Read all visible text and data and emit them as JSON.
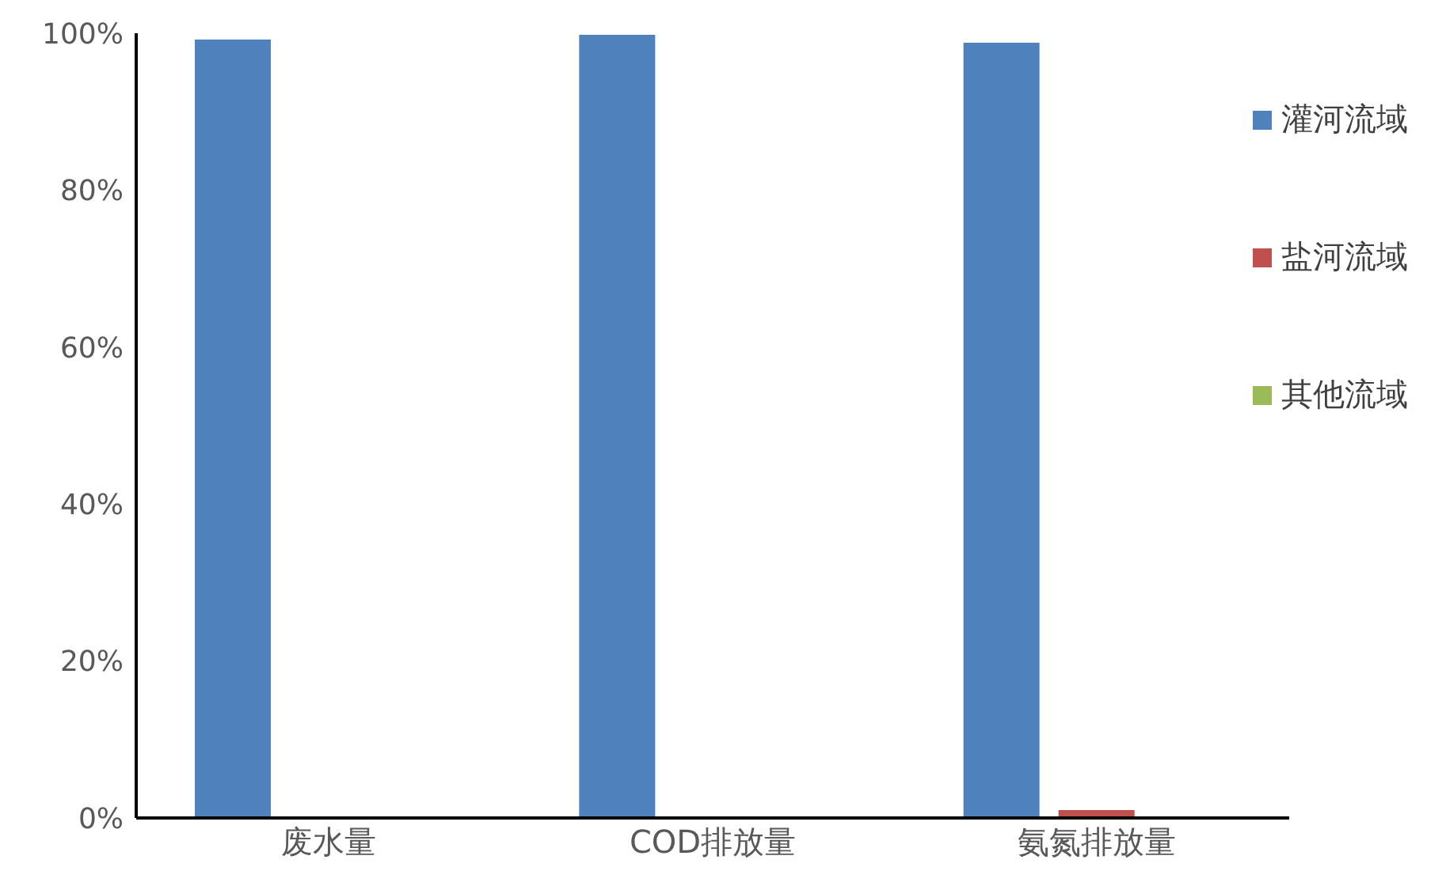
{
  "chart_data": {
    "type": "bar",
    "categories": [
      "废水量",
      "COD排放量",
      "氨氮排放量"
    ],
    "series": [
      {
        "name": "灌河流域",
        "color": "#4f81bd",
        "values": [
          99.2,
          99.8,
          98.8
        ]
      },
      {
        "name": "盐河流域",
        "color": "#c0504d",
        "values": [
          null,
          null,
          1.0
        ]
      },
      {
        "name": "其他流域",
        "color": "#9bbb59",
        "values": [
          null,
          null,
          null
        ]
      }
    ],
    "ylim": [
      0,
      100
    ],
    "yticks": [
      {
        "value": 0,
        "label": "0%"
      },
      {
        "value": 20,
        "label": "20%"
      },
      {
        "value": 40,
        "label": "40%"
      },
      {
        "value": 60,
        "label": "60%"
      },
      {
        "value": 80,
        "label": "80%"
      },
      {
        "value": 100,
        "label": "100%"
      }
    ],
    "legend": "right"
  }
}
